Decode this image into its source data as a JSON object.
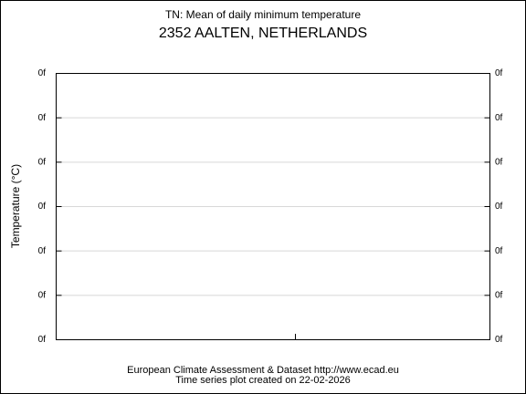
{
  "title": "TN: Mean of daily minimum temperature",
  "subtitle": "2352 AALTEN, NETHERLANDS",
  "y_axis_label": "Temperature (°C)",
  "left_tick_labels": [
    "0f",
    "0f",
    "0f",
    "0f",
    "0f",
    "0f",
    "0f"
  ],
  "right_tick_labels": [
    "0f",
    "0f",
    "0f",
    "0f",
    "0f",
    "0f",
    "0f"
  ],
  "footer": [
    "European Climate Assessment & Dataset  http://www.ecad.eu",
    "Time series plot created on 22-02-2026"
  ]
}
